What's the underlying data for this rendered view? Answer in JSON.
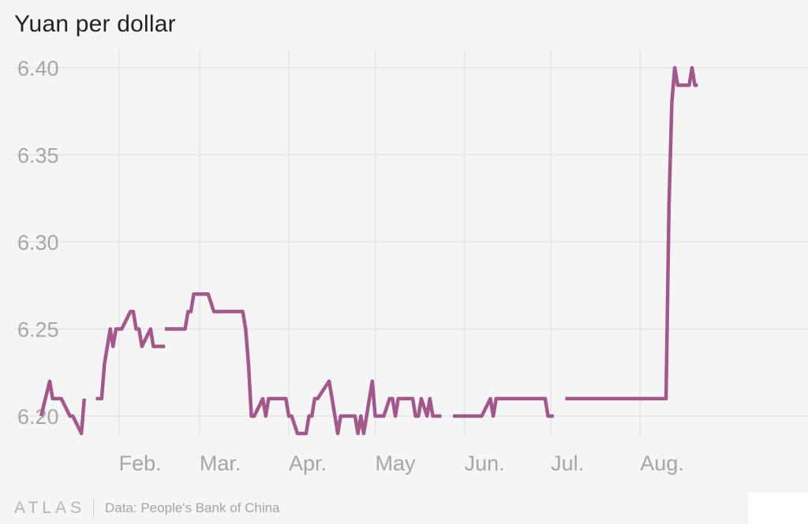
{
  "chart_data": {
    "type": "line",
    "title": "Yuan per dollar",
    "xlabel": "",
    "ylabel": "",
    "ylim": [
      6.185,
      6.41
    ],
    "xlim": [
      "2015-01-01",
      "2015-08-25"
    ],
    "y_ticks": [
      "6.20",
      "6.25",
      "6.30",
      "6.35",
      "6.40"
    ],
    "x_ticks": [
      {
        "label": "Feb.",
        "date": "2015-02-01"
      },
      {
        "label": "Mar.",
        "date": "2015-03-01"
      },
      {
        "label": "Apr.",
        "date": "2015-04-01"
      },
      {
        "label": "May",
        "date": "2015-05-01"
      },
      {
        "label": "Jun.",
        "date": "2015-06-01"
      },
      {
        "label": "Jul.",
        "date": "2015-07-01"
      },
      {
        "label": "Aug.",
        "date": "2015-08-01"
      }
    ],
    "grid": true,
    "line_color": "#a3578a",
    "series": [
      {
        "segments": [
          [
            [
              "2015-01-05",
              6.2
            ],
            [
              "2015-01-08",
              6.22
            ],
            [
              "2015-01-09",
              6.21
            ],
            [
              "2015-01-12",
              6.21
            ],
            [
              "2015-01-15",
              6.2
            ],
            [
              "2015-01-16",
              6.2
            ],
            [
              "2015-01-19",
              6.19
            ],
            [
              "2015-01-20",
              6.21
            ]
          ],
          [
            [
              "2015-01-24",
              6.21
            ],
            [
              "2015-01-26",
              6.21
            ],
            [
              "2015-01-27",
              6.23
            ],
            [
              "2015-01-29",
              6.25
            ],
            [
              "2015-01-30",
              6.24
            ],
            [
              "2015-01-31",
              6.25
            ],
            [
              "2015-02-02",
              6.25
            ],
            [
              "2015-02-05",
              6.26
            ],
            [
              "2015-02-06",
              6.26
            ],
            [
              "2015-02-07",
              6.25
            ],
            [
              "2015-02-08",
              6.25
            ],
            [
              "2015-02-09",
              6.24
            ],
            [
              "2015-02-12",
              6.25
            ],
            [
              "2015-02-13",
              6.24
            ],
            [
              "2015-02-17",
              6.24
            ]
          ],
          [
            [
              "2015-02-17",
              6.25
            ],
            [
              "2015-02-24",
              6.25
            ],
            [
              "2015-02-25",
              6.26
            ],
            [
              "2015-02-26",
              6.26
            ],
            [
              "2015-02-27",
              6.27
            ],
            [
              "2015-03-04",
              6.27
            ],
            [
              "2015-03-06",
              6.26
            ],
            [
              "2015-03-16",
              6.26
            ],
            [
              "2015-03-17",
              6.25
            ],
            [
              "2015-03-18",
              6.23
            ],
            [
              "2015-03-19",
              6.2
            ],
            [
              "2015-03-20",
              6.2
            ],
            [
              "2015-03-23",
              6.21
            ],
            [
              "2015-03-24",
              6.2
            ],
            [
              "2015-03-25",
              6.21
            ],
            [
              "2015-03-31",
              6.21
            ],
            [
              "2015-04-01",
              6.2
            ],
            [
              "2015-04-02",
              6.2
            ],
            [
              "2015-04-04",
              6.19
            ],
            [
              "2015-04-07",
              6.19
            ],
            [
              "2015-04-08",
              6.2
            ],
            [
              "2015-04-09",
              6.2
            ],
            [
              "2015-04-10",
              6.21
            ],
            [
              "2015-04-11",
              6.21
            ],
            [
              "2015-04-15",
              6.22
            ],
            [
              "2015-04-16",
              6.21
            ],
            [
              "2015-04-18",
              6.19
            ],
            [
              "2015-04-19",
              6.2
            ],
            [
              "2015-04-24",
              6.2
            ],
            [
              "2015-04-25",
              6.19
            ],
            [
              "2015-04-26",
              6.2
            ],
            [
              "2015-04-27",
              6.19
            ],
            [
              "2015-04-28",
              6.2
            ],
            [
              "2015-04-30",
              6.22
            ],
            [
              "2015-05-01",
              6.2
            ],
            [
              "2015-05-04",
              6.2
            ],
            [
              "2015-05-06",
              6.21
            ],
            [
              "2015-05-07",
              6.21
            ],
            [
              "2015-05-08",
              6.2
            ],
            [
              "2015-05-09",
              6.21
            ],
            [
              "2015-05-14",
              6.21
            ],
            [
              "2015-05-15",
              6.2
            ],
            [
              "2015-05-16",
              6.2
            ],
            [
              "2015-05-17",
              6.21
            ],
            [
              "2015-05-19",
              6.2
            ],
            [
              "2015-05-20",
              6.21
            ],
            [
              "2015-05-21",
              6.2
            ],
            [
              "2015-05-24",
              6.2
            ]
          ]
        ]
      },
      {
        "segments": [
          [
            [
              "2015-05-28",
              6.2
            ],
            [
              "2015-06-07",
              6.2
            ],
            [
              "2015-06-10",
              6.21
            ],
            [
              "2015-06-11",
              6.2
            ],
            [
              "2015-06-12",
              6.21
            ],
            [
              "2015-06-29",
              6.21
            ],
            [
              "2015-06-30",
              6.2
            ],
            [
              "2015-07-02",
              6.2
            ]
          ]
        ]
      },
      {
        "segments": [
          [
            [
              "2015-07-06",
              6.21
            ],
            [
              "2015-08-10",
              6.21
            ],
            [
              "2015-08-11",
              6.32
            ],
            [
              "2015-08-12",
              6.38
            ],
            [
              "2015-08-13",
              6.4
            ],
            [
              "2015-08-14",
              6.39
            ],
            [
              "2015-08-18",
              6.39
            ],
            [
              "2015-08-19",
              6.4
            ],
            [
              "2015-08-20",
              6.39
            ],
            [
              "2015-08-21",
              6.39
            ]
          ]
        ]
      }
    ]
  },
  "footer": {
    "logo": "ATLAS",
    "source": "Data: People's Bank of China"
  }
}
